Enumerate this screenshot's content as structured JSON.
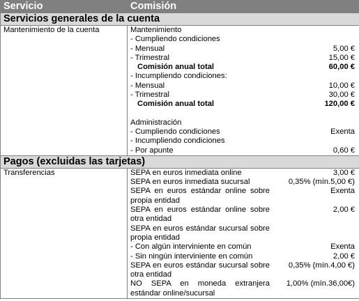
{
  "header": {
    "col_service": "Servicio",
    "col_fee": "Comisión"
  },
  "sections": [
    {
      "title": "Servicios generales de la cuenta",
      "service": "Mantenimiento de la cuenta",
      "lines": [
        {
          "text": "Mantenimiento",
          "value": ""
        },
        {
          "text": "- Cumpliendo condiciones",
          "value": ""
        },
        {
          "text": "- Mensual",
          "value": "5,00 €"
        },
        {
          "text": "- Trimestral",
          "value": "15,00 €"
        },
        {
          "text": "Comisión anual total",
          "value": "60,00 €",
          "bold": true
        },
        {
          "text": "- Incumpliendo condiciones:",
          "value": ""
        },
        {
          "text": "- Mensual",
          "value": "10,00 €"
        },
        {
          "text": "- Trimestral",
          "value": "30,00 €"
        },
        {
          "text": "Comisión anual total",
          "value": "120,00 €",
          "bold": true
        },
        {
          "text": "",
          "value": "",
          "gap": true
        },
        {
          "text": "Administración",
          "value": ""
        },
        {
          "text": "- Cumpliendo condiciones",
          "value": "Exenta"
        },
        {
          "text": "- Incumpliendo condiciones",
          "value": ""
        },
        {
          "text": "- Por apunte",
          "value": "0,60 €"
        }
      ]
    },
    {
      "title": "Pagos (excluidas las tarjetas)",
      "service": "Transferencias",
      "lines": [
        {
          "text": "SEPA en euros inmediata online",
          "value": "3,00 €"
        },
        {
          "text": "SEPA en euros inmediata sucursal",
          "value": "0,35% (mín.5,00 €)"
        },
        {
          "text": "SEPA en euros estándar online sobre propia entidad",
          "value": "Exenta",
          "wrap": true
        },
        {
          "text": "SEPA en euros estándar online sobre otra entidad",
          "value": "2,00 €",
          "wrap": true
        },
        {
          "text": "SEPA en euros estándar sucursal sobre propia entidad",
          "value": "",
          "wrap": true
        },
        {
          "text": "- Con algún interviniente en común",
          "value": "Exenta"
        },
        {
          "text": "- Sin ningún interviniente en común",
          "value": "2,00 €"
        },
        {
          "text": "SEPA en euros estándar sucursal sobre otra entidad",
          "value": "0,35% (mín.4,00 €)",
          "wrap": true
        },
        {
          "text": "NO SEPA en moneda extranjera estándar online/sucursal",
          "value": "1,00% (mín.36,00€)",
          "wrap": true
        }
      ]
    }
  ]
}
